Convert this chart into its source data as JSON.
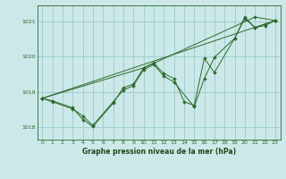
{
  "background_color": "#cce8e8",
  "grid_color": "#99cccc",
  "line_color": "#2d6a2d",
  "marker_color": "#2d6a2d",
  "title": "Graphe pression niveau de la mer (hPa)",
  "title_color": "#1a4a1a",
  "ylim": [
    1017.65,
    1021.45
  ],
  "xlim": [
    -0.5,
    23.5
  ],
  "yticks": [
    1018,
    1019,
    1020,
    1021
  ],
  "xticks": [
    0,
    1,
    2,
    3,
    4,
    5,
    6,
    7,
    8,
    9,
    10,
    11,
    12,
    13,
    14,
    15,
    16,
    17,
    18,
    19,
    20,
    21,
    22,
    23
  ],
  "line1_x": [
    0,
    1,
    3,
    4,
    5,
    7,
    8,
    9,
    10,
    11,
    12,
    13,
    14,
    15,
    16,
    17,
    19,
    20,
    21,
    22,
    23
  ],
  "line1_y": [
    1018.82,
    1018.75,
    1018.55,
    1018.22,
    1018.02,
    1018.68,
    1019.12,
    1019.22,
    1019.68,
    1019.82,
    1019.52,
    1019.38,
    1018.72,
    1018.62,
    1019.95,
    1019.55,
    1020.52,
    1021.12,
    1020.82,
    1020.92,
    1021.02
  ],
  "line2_x": [
    0,
    1,
    3,
    4,
    5,
    7,
    8,
    9,
    10,
    11,
    12,
    13,
    15,
    16,
    17,
    19,
    20,
    21,
    22,
    23
  ],
  "line2_y": [
    1018.82,
    1018.72,
    1018.52,
    1018.32,
    1018.05,
    1018.72,
    1019.05,
    1019.18,
    1019.62,
    1019.78,
    1019.45,
    1019.28,
    1018.58,
    1019.38,
    1019.98,
    1020.52,
    1021.08,
    1020.82,
    1020.88,
    1021.02
  ],
  "line3_x": [
    0,
    23
  ],
  "line3_y": [
    1018.82,
    1021.02
  ],
  "line4_x": [
    0,
    10,
    21,
    23
  ],
  "line4_y": [
    1018.82,
    1019.68,
    1021.12,
    1021.02
  ]
}
